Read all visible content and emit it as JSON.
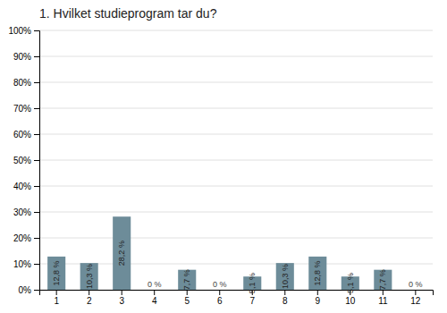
{
  "chart_data": {
    "type": "bar",
    "title": "1. Hvilket studieprogram tar du?",
    "categories": [
      "1",
      "2",
      "3",
      "4",
      "5",
      "6",
      "7",
      "8",
      "9",
      "10",
      "11",
      "12"
    ],
    "values": [
      12.8,
      10.3,
      28.2,
      0.0,
      7.7,
      0.0,
      5.1,
      10.3,
      12.8,
      5.1,
      7.7,
      0.0
    ],
    "value_labels": [
      "12,8 %",
      "10,3 %",
      "28,2 %",
      "0 %",
      "7,7 %",
      "0 %",
      "5,1 %",
      "10,3 %",
      "12,8 %",
      "5,1 %",
      "7,7 %",
      "0 %"
    ],
    "data_labels": true,
    "color": "#6d8c99",
    "ylim": [
      0,
      100
    ],
    "yticks": [
      {
        "value": 0,
        "label": "0%"
      },
      {
        "value": 10,
        "label": "10%"
      },
      {
        "value": 20,
        "label": "20%"
      },
      {
        "value": 30,
        "label": "30%"
      },
      {
        "value": 40,
        "label": "40%"
      },
      {
        "value": 50,
        "label": "50%"
      },
      {
        "value": 60,
        "label": "60%"
      },
      {
        "value": 70,
        "label": "70%"
      },
      {
        "value": 80,
        "label": "80%"
      },
      {
        "value": 90,
        "label": "90%"
      },
      {
        "value": 100,
        "label": "100%"
      }
    ],
    "grid": true
  }
}
